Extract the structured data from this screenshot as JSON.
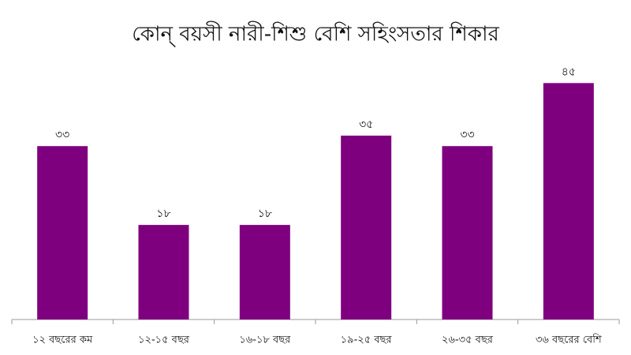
{
  "chart_data": {
    "type": "bar",
    "title": "কোন্ বয়সী নারী-শিশু বেশি সহিংসতার শিকার",
    "categories": [
      "১২ বছরের কম",
      "১২-১৫ বছর",
      "১৬-১৮ বছর",
      "১৯-২৫ বছর",
      "২৬-৩৫ বছর",
      "৩৬ বছরের বেশি"
    ],
    "values": [
      33,
      18,
      18,
      35,
      33,
      45
    ],
    "value_labels": [
      "৩৩",
      "১৮",
      "১৮",
      "৩৫",
      "৩৩",
      "৪৫"
    ],
    "color": "#7f007f",
    "ylim": [
      0,
      50
    ]
  }
}
